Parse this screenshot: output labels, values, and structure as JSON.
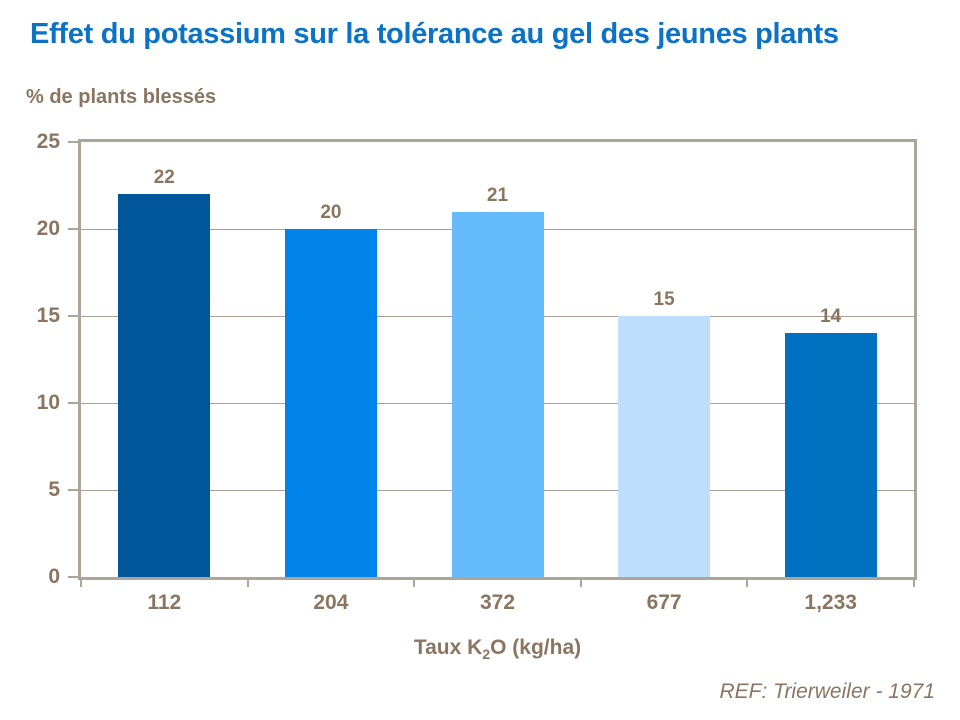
{
  "title": "Effet du potassium sur la tolérance au gel des jeunes plants",
  "reference": "REF: Trierweiler - 1971",
  "colors": {
    "title": "#0C72C6",
    "text": "#8A7660",
    "frame": "#AEA59A",
    "gridline": "#A89E93",
    "background": "#FFFFFF"
  },
  "chart_data": {
    "type": "bar",
    "title": "Effet du potassium sur la tolérance au gel des jeunes plants",
    "ylabel": "% de plants blessés",
    "xlabel_prefix": "Taux K",
    "xlabel_sub": "2",
    "xlabel_suffix": "O (kg/ha)",
    "categories": [
      "112",
      "204",
      "372",
      "677",
      "1,233"
    ],
    "values": [
      22,
      20,
      21,
      15,
      14
    ],
    "bar_colors": [
      "#005699",
      "#0083E8",
      "#66BBFA",
      "#BDDFFB",
      "#0070C0"
    ],
    "ylim": [
      0,
      25
    ],
    "yticks": [
      0,
      5,
      10,
      15,
      20,
      25
    ],
    "grid": true,
    "legend": false,
    "annotation": "REF: Trierweiler - 1971"
  }
}
